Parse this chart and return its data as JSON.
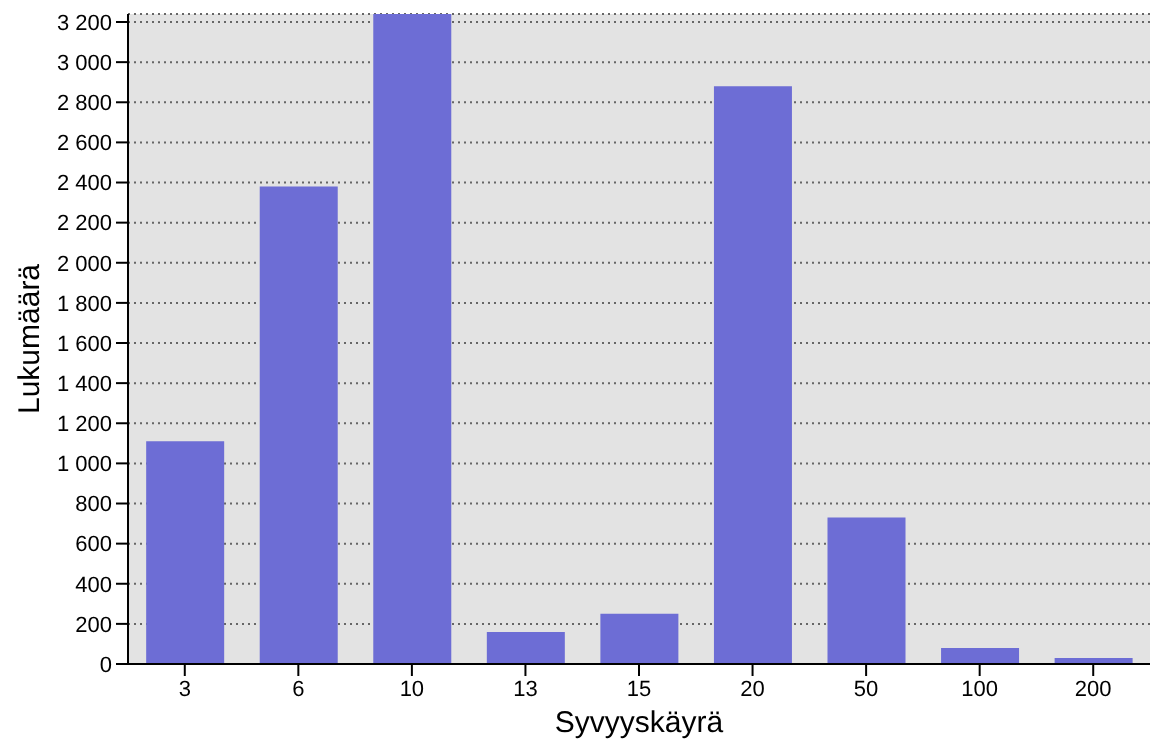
{
  "chart_data": {
    "type": "bar",
    "xlabel": "Syvyyskäyrä",
    "ylabel": "Lukumäärä",
    "categories": [
      "3",
      "6",
      "10",
      "13",
      "15",
      "20",
      "50",
      "100",
      "200"
    ],
    "values": [
      1110,
      2380,
      3240,
      160,
      250,
      2880,
      730,
      80,
      30
    ],
    "color": "#6d6dd5",
    "ylim": [
      0,
      3240
    ],
    "yticks": [
      0,
      200,
      400,
      600,
      800,
      {
        "value": 1000,
        "label": "1 000"
      },
      {
        "value": 1200,
        "label": "1 200"
      },
      {
        "value": 1400,
        "label": "1 400"
      },
      {
        "value": 1600,
        "label": "1 600"
      },
      {
        "value": 1800,
        "label": "1 800"
      },
      {
        "value": 2000,
        "label": "2 000"
      },
      {
        "value": 2200,
        "label": "2 200"
      },
      {
        "value": 2400,
        "label": "2 400"
      },
      {
        "value": 2600,
        "label": "2 600"
      },
      {
        "value": 2800,
        "label": "2 800"
      },
      {
        "value": 3000,
        "label": "3 000"
      },
      {
        "value": 3200,
        "label": "3 200"
      }
    ],
    "grid": "y"
  }
}
